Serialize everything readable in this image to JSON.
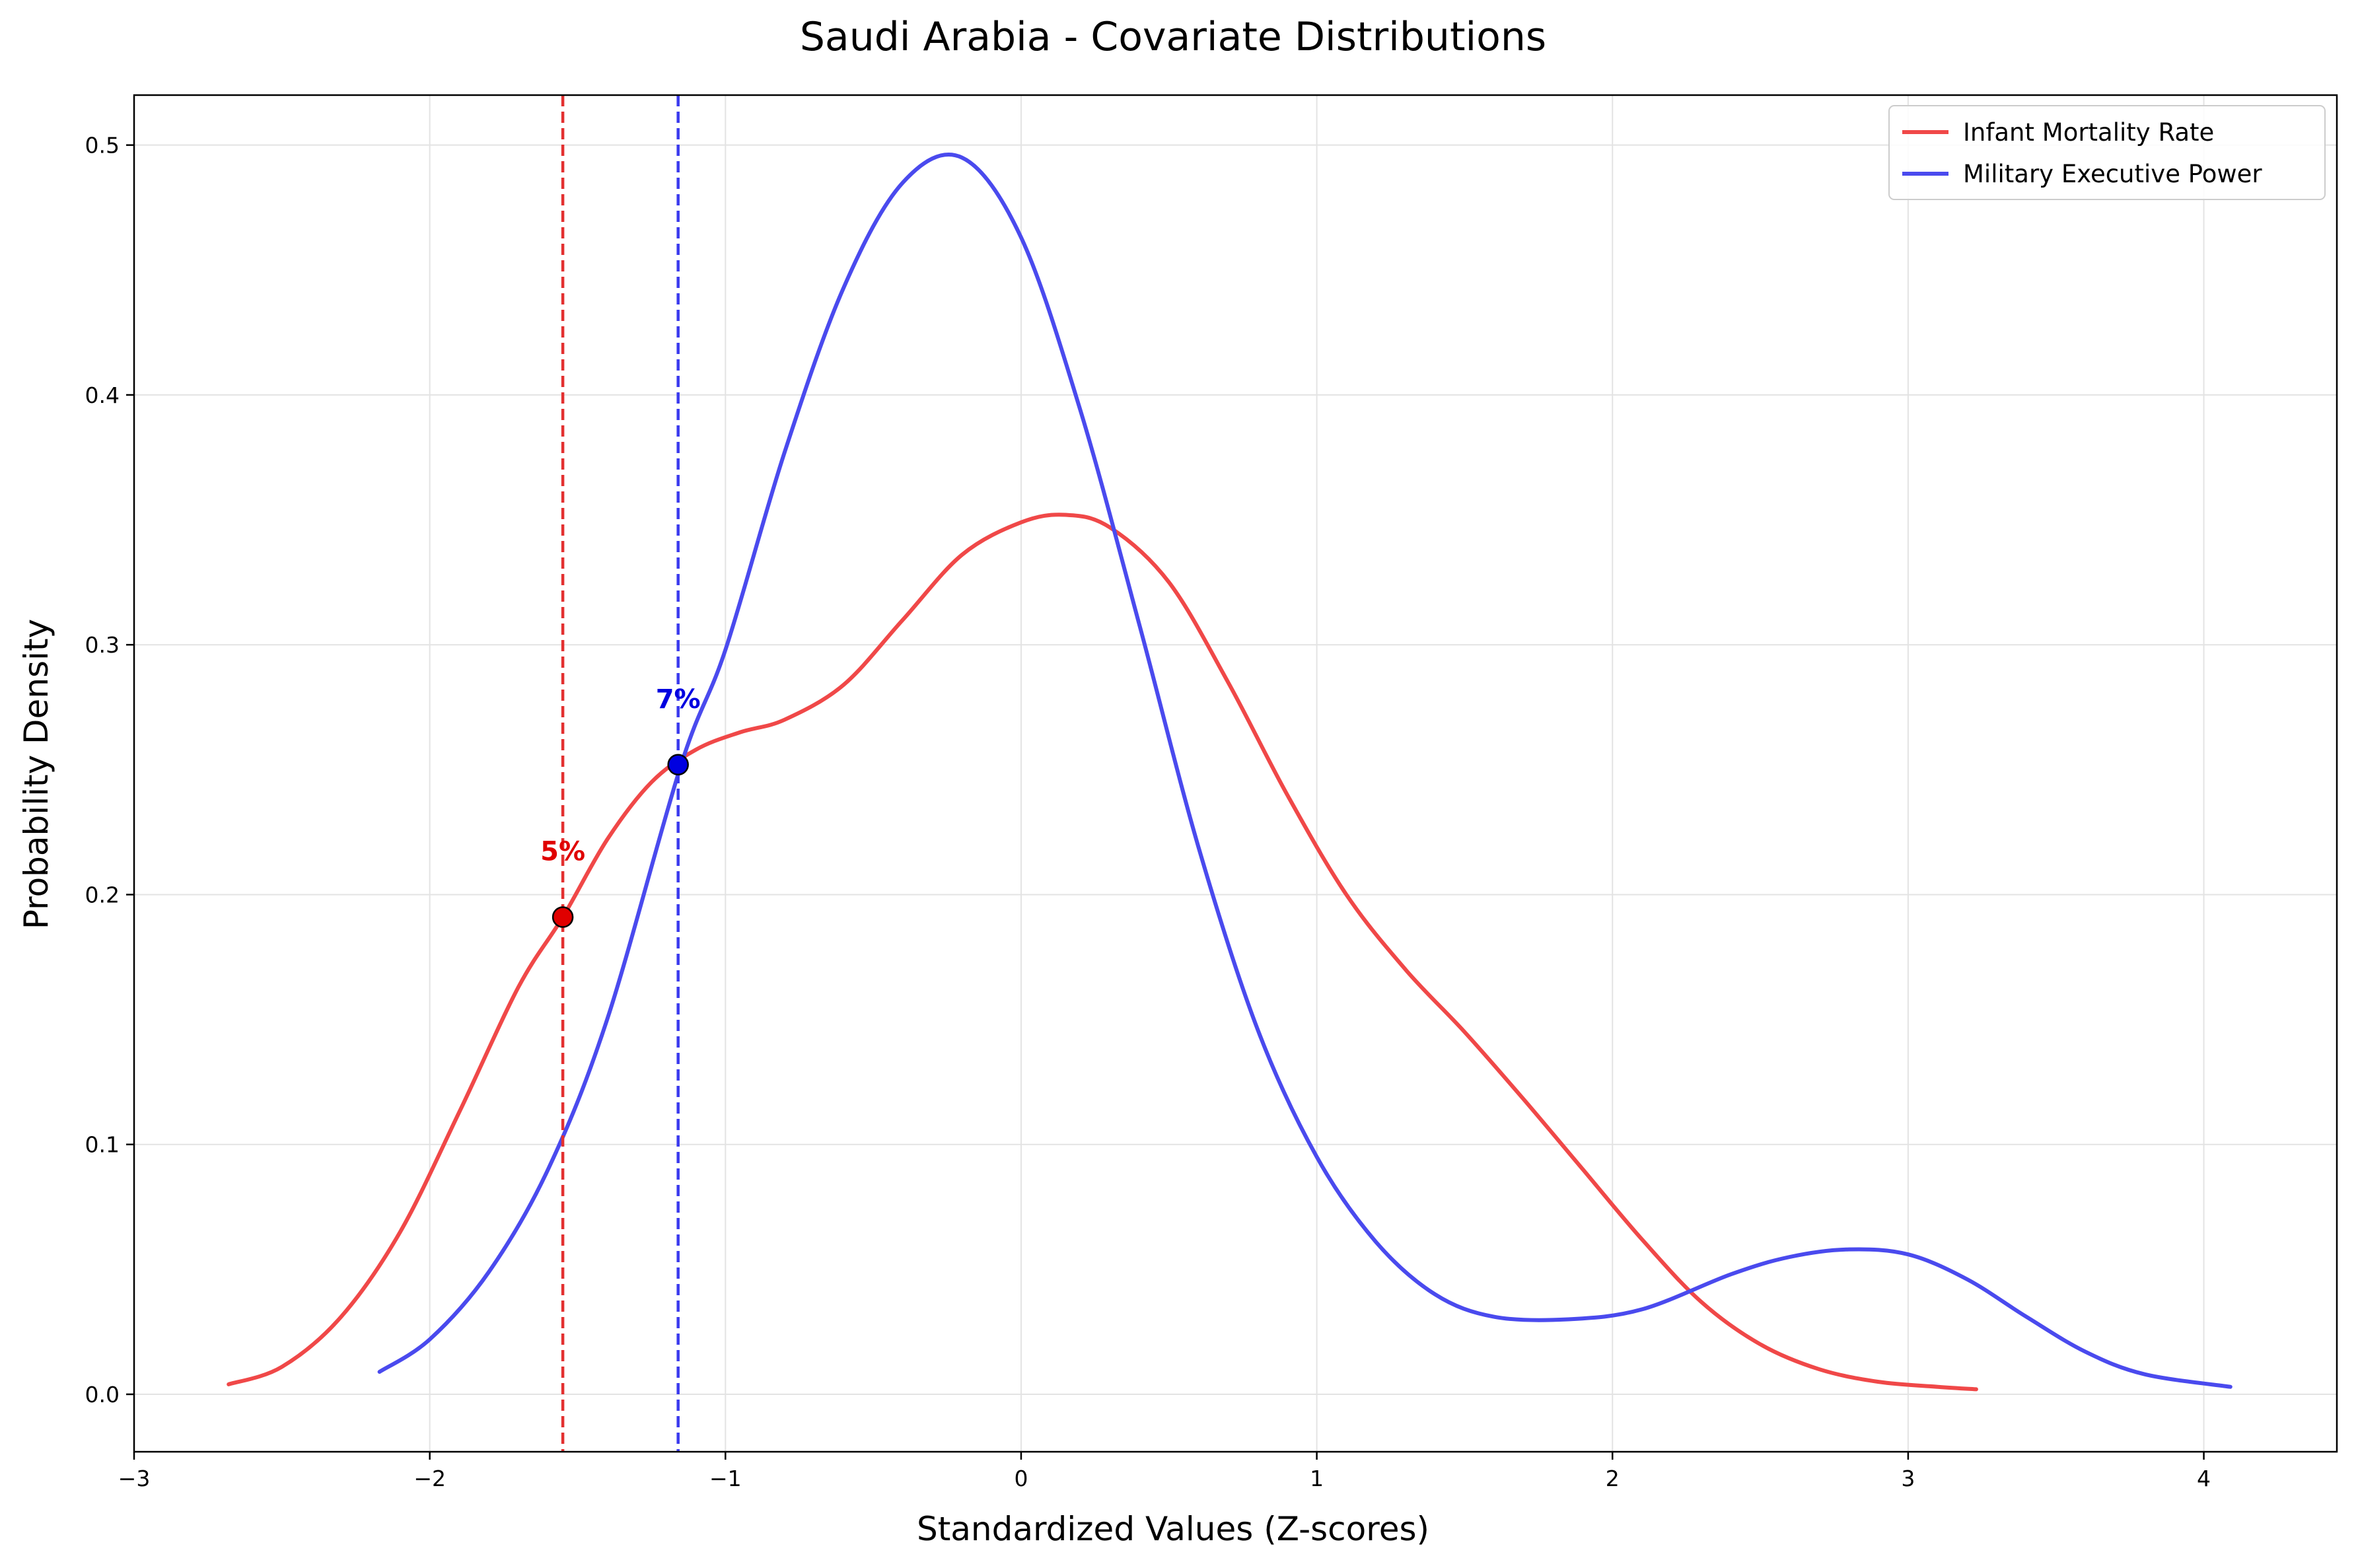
{
  "chart_data": {
    "type": "line",
    "title": "Saudi Arabia - Covariate Distributions",
    "xlabel": "Standardized Values (Z-scores)",
    "ylabel": "Probability Density",
    "xlim": [
      -3,
      4.45
    ],
    "ylim": [
      -0.023,
      0.52
    ],
    "xticks": [
      -3,
      -2,
      -1,
      0,
      1,
      2,
      3,
      4
    ],
    "xtick_labels": [
      "−3",
      "−2",
      "−1",
      "0",
      "1",
      "2",
      "3",
      "4"
    ],
    "yticks": [
      0.0,
      0.1,
      0.2,
      0.3,
      0.4,
      0.5
    ],
    "ytick_labels": [
      "0.0",
      "0.1",
      "0.2",
      "0.3",
      "0.4",
      "0.5"
    ],
    "grid": true,
    "legend_position": "top-right",
    "series": [
      {
        "name": "Infant Mortality Rate",
        "color": "#f04848",
        "x": [
          -2.68,
          -2.5,
          -2.3,
          -2.1,
          -1.9,
          -1.7,
          -1.55,
          -1.4,
          -1.25,
          -1.1,
          -0.95,
          -0.8,
          -0.6,
          -0.4,
          -0.2,
          0.0,
          0.15,
          0.3,
          0.5,
          0.7,
          0.9,
          1.1,
          1.3,
          1.5,
          1.7,
          1.9,
          2.1,
          2.3,
          2.5,
          2.7,
          2.9,
          3.1,
          3.23
        ],
        "y": [
          0.004,
          0.011,
          0.031,
          0.065,
          0.113,
          0.163,
          0.191,
          0.222,
          0.245,
          0.258,
          0.265,
          0.27,
          0.284,
          0.31,
          0.336,
          0.349,
          0.352,
          0.347,
          0.325,
          0.285,
          0.24,
          0.2,
          0.17,
          0.145,
          0.118,
          0.09,
          0.062,
          0.037,
          0.02,
          0.01,
          0.005,
          0.003,
          0.002
        ]
      },
      {
        "name": "Military Executive Power",
        "color": "#4a4aee",
        "x": [
          -2.17,
          -2.0,
          -1.8,
          -1.6,
          -1.4,
          -1.15,
          -1.0,
          -0.8,
          -0.6,
          -0.4,
          -0.2,
          0.0,
          0.2,
          0.4,
          0.6,
          0.8,
          1.0,
          1.2,
          1.4,
          1.6,
          1.85,
          2.1,
          2.4,
          2.6,
          2.8,
          3.0,
          3.2,
          3.4,
          3.6,
          3.8,
          4.09
        ],
        "y": [
          0.009,
          0.022,
          0.049,
          0.09,
          0.15,
          0.252,
          0.298,
          0.377,
          0.443,
          0.485,
          0.495,
          0.463,
          0.394,
          0.308,
          0.219,
          0.146,
          0.095,
          0.061,
          0.04,
          0.031,
          0.03,
          0.034,
          0.048,
          0.055,
          0.058,
          0.056,
          0.046,
          0.031,
          0.017,
          0.008,
          0.003
        ]
      }
    ],
    "markers": [
      {
        "series": "Infant Mortality Rate",
        "x": -1.55,
        "y": 0.191,
        "label": "5%",
        "color": "#e00000",
        "line_color": "#e33030"
      },
      {
        "series": "Military Executive Power",
        "x": -1.16,
        "y": 0.252,
        "label": "7%",
        "color": "#0000e0",
        "line_color": "#3a3aee"
      }
    ]
  }
}
